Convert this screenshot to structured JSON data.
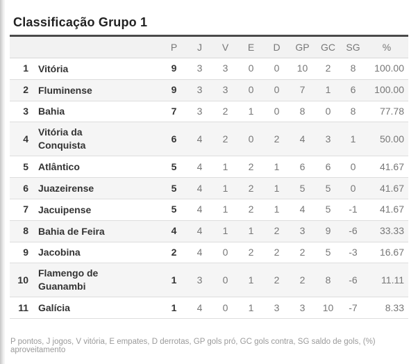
{
  "title": "Classificação Grupo 1",
  "table": {
    "columns": [
      "P",
      "J",
      "V",
      "E",
      "D",
      "GP",
      "GC",
      "SG",
      "%"
    ],
    "rows": [
      {
        "pos": "1",
        "team": "Vitória",
        "p": "9",
        "j": "3",
        "v": "3",
        "e": "0",
        "d": "0",
        "gp": "10",
        "gc": "2",
        "sg": "8",
        "pct": "100.00"
      },
      {
        "pos": "2",
        "team": "Fluminense",
        "p": "9",
        "j": "3",
        "v": "3",
        "e": "0",
        "d": "0",
        "gp": "7",
        "gc": "1",
        "sg": "6",
        "pct": "100.00"
      },
      {
        "pos": "3",
        "team": "Bahia",
        "p": "7",
        "j": "3",
        "v": "2",
        "e": "1",
        "d": "0",
        "gp": "8",
        "gc": "0",
        "sg": "8",
        "pct": "77.78"
      },
      {
        "pos": "4",
        "team": "Vitória da Conquista",
        "p": "6",
        "j": "4",
        "v": "2",
        "e": "0",
        "d": "2",
        "gp": "4",
        "gc": "3",
        "sg": "1",
        "pct": "50.00"
      },
      {
        "pos": "5",
        "team": "Atlântico",
        "p": "5",
        "j": "4",
        "v": "1",
        "e": "2",
        "d": "1",
        "gp": "6",
        "gc": "6",
        "sg": "0",
        "pct": "41.67"
      },
      {
        "pos": "6",
        "team": "Juazeirense",
        "p": "5",
        "j": "4",
        "v": "1",
        "e": "2",
        "d": "1",
        "gp": "5",
        "gc": "5",
        "sg": "0",
        "pct": "41.67"
      },
      {
        "pos": "7",
        "team": "Jacuipense",
        "p": "5",
        "j": "4",
        "v": "1",
        "e": "2",
        "d": "1",
        "gp": "4",
        "gc": "5",
        "sg": "-1",
        "pct": "41.67"
      },
      {
        "pos": "8",
        "team": "Bahia de Feira",
        "p": "4",
        "j": "4",
        "v": "1",
        "e": "1",
        "d": "2",
        "gp": "3",
        "gc": "9",
        "sg": "-6",
        "pct": "33.33"
      },
      {
        "pos": "9",
        "team": "Jacobina",
        "p": "2",
        "j": "4",
        "v": "0",
        "e": "2",
        "d": "2",
        "gp": "2",
        "gc": "5",
        "sg": "-3",
        "pct": "16.67"
      },
      {
        "pos": "10",
        "team": "Flamengo de Guanambi",
        "p": "1",
        "j": "3",
        "v": "0",
        "e": "1",
        "d": "2",
        "gp": "2",
        "gc": "8",
        "sg": "-6",
        "pct": "11.11"
      },
      {
        "pos": "11",
        "team": "Galícia",
        "p": "1",
        "j": "4",
        "v": "0",
        "e": "1",
        "d": "3",
        "gp": "3",
        "gc": "10",
        "sg": "-7",
        "pct": "8.33"
      }
    ]
  },
  "legend": "P pontos, J jogos, V vitória, E empates, D derrotas, GP gols pró, GC gols contra, SG saldo de gols, (%) aproveitamento",
  "colors": {
    "title_text": "#222222",
    "header_rule": "#4a4a4a",
    "header_bg": "#f2f2f2",
    "muted_text": "#777777",
    "strong_text": "#333333",
    "zebra_bg": "#f5f5f5",
    "row_border": "#dddddd",
    "legend_text": "#9a9a9a"
  }
}
